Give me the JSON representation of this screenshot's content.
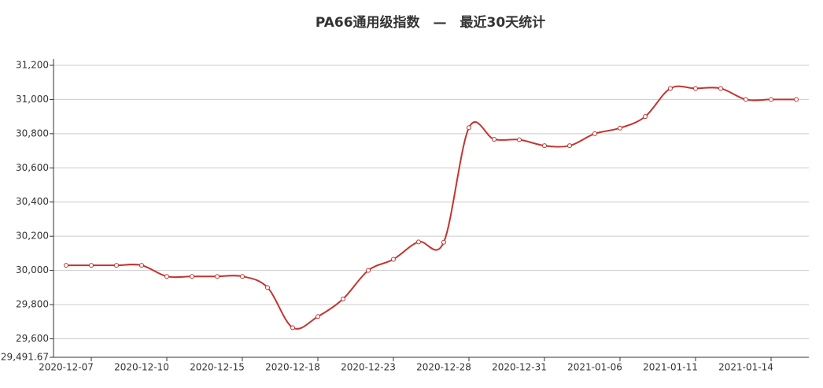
{
  "chart_data": {
    "type": "line",
    "title": "PA66通用级指数　—　最近30天统计",
    "categories": [
      "2020-12-07",
      null,
      null,
      "2020-12-10",
      null,
      null,
      "2020-12-15",
      null,
      null,
      "2020-12-18",
      null,
      null,
      "2020-12-23",
      null,
      null,
      "2020-12-28",
      null,
      null,
      "2020-12-31",
      null,
      null,
      "2021-01-06",
      null,
      null,
      "2021-01-11",
      null,
      null,
      "2021-01-14",
      null,
      null
    ],
    "series": [
      {
        "color": "#c23531",
        "values": [
          30030,
          30030,
          30030,
          30030,
          29965,
          29965,
          29965,
          29965,
          29900,
          29665,
          29730,
          29833,
          30000,
          30065,
          30167,
          30165,
          30835,
          30767,
          30765,
          30730,
          30730,
          30800,
          30833,
          30900,
          31065,
          31065,
          31065,
          31000,
          31000,
          31000
        ]
      }
    ],
    "ylim": [
      29491.67,
      31200
    ],
    "yticks": [
      {
        "value": 29491.67,
        "label": "29,491.67"
      },
      {
        "value": 29600,
        "label": "29,600"
      },
      {
        "value": 29800,
        "label": "29,800"
      },
      {
        "value": 30000,
        "label": "30,000"
      },
      {
        "value": 30200,
        "label": "30,200"
      },
      {
        "value": 30400,
        "label": "30,400"
      },
      {
        "value": 30600,
        "label": "30,600"
      },
      {
        "value": 30800,
        "label": "30,800"
      },
      {
        "value": 31000,
        "label": "31,000"
      },
      {
        "value": 31200,
        "label": "31,200"
      }
    ],
    "grid": true,
    "smooth": true
  }
}
